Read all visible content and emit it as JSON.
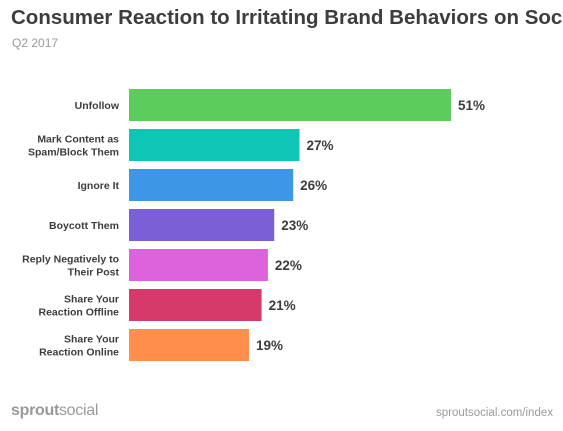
{
  "chart_data": {
    "type": "bar",
    "orientation": "horizontal",
    "title": "Consumer Reaction to Irritating Brand Behaviors on Social",
    "subtitle": "Q2 2017",
    "categories": [
      [
        "Unfollow"
      ],
      [
        "Mark Content as",
        "Spam/Block Them"
      ],
      [
        "Ignore It"
      ],
      [
        "Boycott Them"
      ],
      [
        "Reply Negatively to",
        "Their Post"
      ],
      [
        "Share Your",
        "Reaction Offline"
      ],
      [
        "Share Your",
        "Reaction Online"
      ]
    ],
    "values": [
      51,
      27,
      26,
      23,
      22,
      21,
      19
    ],
    "value_labels": [
      "51%",
      "27%",
      "26%",
      "23%",
      "22%",
      "21%",
      "19%"
    ],
    "colors": [
      "#5ccd5c",
      "#0fc6b6",
      "#3d96e6",
      "#7a5fd6",
      "#dd63dc",
      "#d63a6a",
      "#ff8f4a"
    ],
    "xlim": [
      0,
      51
    ],
    "grid": false,
    "legend": "none"
  },
  "footer": {
    "logo_part1": "sprout",
    "logo_part2": "social",
    "source": "sproutsocial.com/index"
  }
}
